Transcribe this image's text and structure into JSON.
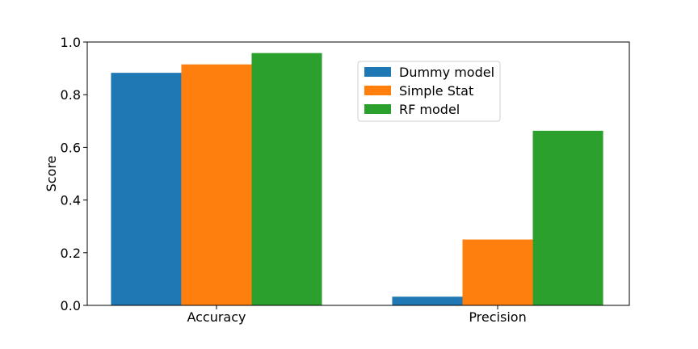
{
  "chart_data": {
    "type": "bar",
    "title": "",
    "xlabel": "",
    "ylabel": "Score",
    "categories": [
      "Accuracy",
      "Precision"
    ],
    "ylim": [
      0,
      1.0
    ],
    "yticks": [
      "0.0",
      "0.2",
      "0.4",
      "0.6",
      "0.8",
      "1.0"
    ],
    "grid": false,
    "legend_position": "upper right-center",
    "series": [
      {
        "name": "Dummy model",
        "color": "#1f77b4",
        "values": [
          0.883,
          0.033
        ]
      },
      {
        "name": "Simple Stat",
        "color": "#ff7f0e",
        "values": [
          0.915,
          0.25
        ]
      },
      {
        "name": "RF model",
        "color": "#2ca02c",
        "values": [
          0.958,
          0.663
        ]
      }
    ]
  }
}
